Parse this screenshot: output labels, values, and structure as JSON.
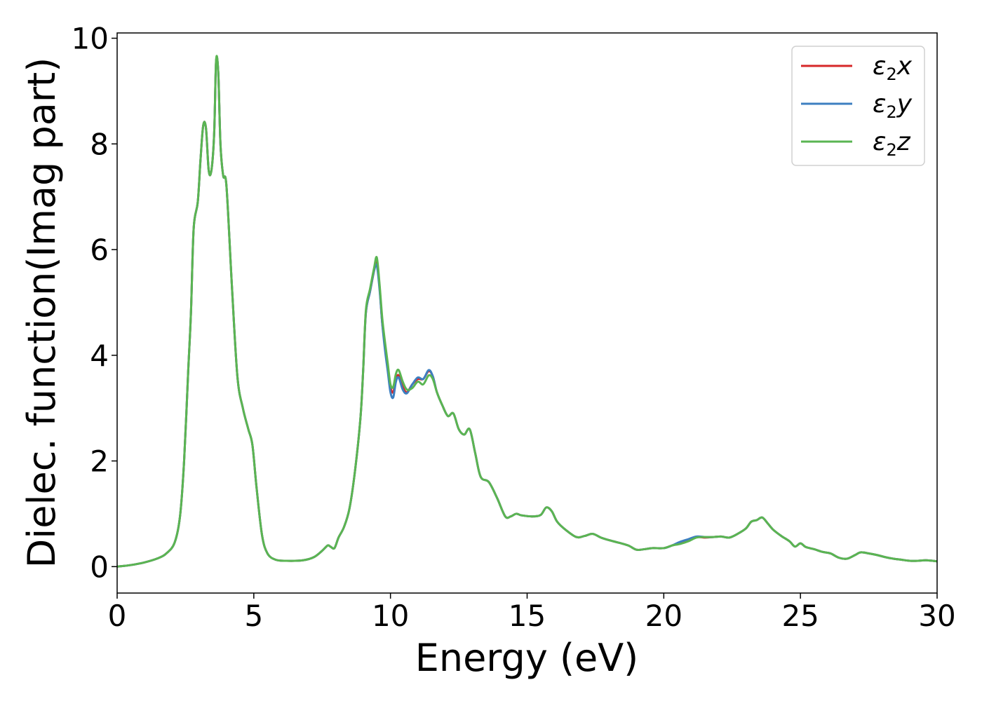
{
  "chart_data": {
    "type": "line",
    "xlabel": "Energy (eV)",
    "ylabel": "Dielec. function(Imag part)",
    "xlim": [
      0,
      30
    ],
    "ylim": [
      -0.5,
      10.1
    ],
    "xticks": [
      0,
      5,
      10,
      15,
      20,
      25,
      30
    ],
    "yticks": [
      0,
      2,
      4,
      6,
      8,
      10
    ],
    "grid": false,
    "legend_position": "top-right",
    "colors": [
      "#d62728",
      "#3d7fc1",
      "#5ab552"
    ],
    "x": [
      0,
      0.5,
      1.0,
      1.5,
      1.8,
      2.1,
      2.3,
      2.45,
      2.6,
      2.7,
      2.8,
      2.95,
      3.05,
      3.15,
      3.25,
      3.35,
      3.45,
      3.55,
      3.62,
      3.7,
      3.78,
      3.88,
      4.0,
      4.2,
      4.4,
      4.6,
      4.8,
      4.95,
      5.1,
      5.3,
      5.5,
      5.8,
      6.2,
      6.8,
      7.2,
      7.5,
      7.7,
      7.8,
      7.95,
      8.1,
      8.3,
      8.5,
      8.7,
      8.9,
      9.0,
      9.1,
      9.25,
      9.4,
      9.5,
      9.6,
      9.7,
      9.8,
      9.9,
      10.0,
      10.1,
      10.2,
      10.3,
      10.45,
      10.6,
      10.8,
      11.0,
      11.2,
      11.4,
      11.55,
      11.7,
      11.9,
      12.1,
      12.3,
      12.5,
      12.7,
      12.9,
      13.1,
      13.3,
      13.6,
      13.9,
      14.2,
      14.4,
      14.6,
      14.8,
      15.2,
      15.5,
      15.7,
      15.9,
      16.1,
      16.4,
      16.8,
      17.1,
      17.4,
      17.7,
      18.0,
      18.3,
      18.7,
      19.0,
      19.3,
      19.6,
      20.0,
      20.3,
      20.6,
      20.9,
      21.2,
      21.5,
      21.8,
      22.1,
      22.4,
      22.7,
      23.0,
      23.2,
      23.4,
      23.6,
      23.8,
      24.0,
      24.3,
      24.6,
      24.8,
      25.0,
      25.2,
      25.5,
      25.8,
      26.1,
      26.4,
      26.7,
      27.0,
      27.2,
      27.5,
      27.8,
      28.1,
      28.4,
      28.7,
      29.0,
      29.3,
      29.6,
      30.0
    ],
    "series": [
      {
        "name": "ε2x",
        "values": [
          0.0,
          0.03,
          0.08,
          0.16,
          0.25,
          0.45,
          0.95,
          2.0,
          3.7,
          4.8,
          6.4,
          6.9,
          7.7,
          8.35,
          8.3,
          7.5,
          7.5,
          8.2,
          9.55,
          9.35,
          8.0,
          7.4,
          7.2,
          5.3,
          3.6,
          3.0,
          2.6,
          2.3,
          1.5,
          0.6,
          0.25,
          0.13,
          0.11,
          0.12,
          0.18,
          0.3,
          0.4,
          0.38,
          0.35,
          0.55,
          0.75,
          1.1,
          1.8,
          2.8,
          3.7,
          4.8,
          5.2,
          5.6,
          5.8,
          5.3,
          4.6,
          4.2,
          3.8,
          3.4,
          3.3,
          3.55,
          3.62,
          3.4,
          3.3,
          3.45,
          3.55,
          3.55,
          3.7,
          3.6,
          3.3,
          3.05,
          2.85,
          2.9,
          2.6,
          2.5,
          2.6,
          2.15,
          1.7,
          1.6,
          1.3,
          0.95,
          0.95,
          1.0,
          0.97,
          0.95,
          0.98,
          1.12,
          1.05,
          0.85,
          0.7,
          0.56,
          0.58,
          0.62,
          0.55,
          0.5,
          0.46,
          0.4,
          0.32,
          0.33,
          0.35,
          0.35,
          0.4,
          0.45,
          0.5,
          0.56,
          0.55,
          0.56,
          0.57,
          0.55,
          0.62,
          0.72,
          0.85,
          0.88,
          0.93,
          0.82,
          0.7,
          0.58,
          0.48,
          0.38,
          0.44,
          0.37,
          0.33,
          0.28,
          0.25,
          0.17,
          0.15,
          0.22,
          0.27,
          0.25,
          0.22,
          0.18,
          0.15,
          0.13,
          0.11,
          0.11,
          0.12,
          0.1
        ]
      },
      {
        "name": "ε2y",
        "values": [
          0.0,
          0.03,
          0.08,
          0.16,
          0.25,
          0.45,
          0.95,
          2.0,
          3.7,
          4.8,
          6.4,
          6.9,
          7.7,
          8.35,
          8.3,
          7.5,
          7.5,
          8.2,
          9.55,
          9.35,
          8.0,
          7.4,
          7.2,
          5.3,
          3.6,
          3.0,
          2.6,
          2.3,
          1.5,
          0.6,
          0.25,
          0.13,
          0.11,
          0.12,
          0.18,
          0.3,
          0.4,
          0.38,
          0.35,
          0.55,
          0.75,
          1.1,
          1.8,
          2.8,
          3.7,
          4.8,
          5.2,
          5.6,
          5.7,
          5.25,
          4.6,
          4.1,
          3.7,
          3.3,
          3.2,
          3.5,
          3.58,
          3.35,
          3.28,
          3.45,
          3.58,
          3.55,
          3.72,
          3.6,
          3.3,
          3.05,
          2.85,
          2.9,
          2.6,
          2.5,
          2.6,
          2.15,
          1.7,
          1.6,
          1.3,
          0.95,
          0.95,
          1.0,
          0.97,
          0.95,
          0.98,
          1.12,
          1.05,
          0.85,
          0.7,
          0.56,
          0.58,
          0.62,
          0.55,
          0.5,
          0.46,
          0.4,
          0.32,
          0.33,
          0.35,
          0.35,
          0.4,
          0.47,
          0.52,
          0.57,
          0.56,
          0.56,
          0.57,
          0.55,
          0.62,
          0.72,
          0.85,
          0.88,
          0.93,
          0.82,
          0.7,
          0.58,
          0.48,
          0.38,
          0.44,
          0.37,
          0.33,
          0.28,
          0.25,
          0.17,
          0.15,
          0.22,
          0.27,
          0.25,
          0.22,
          0.18,
          0.15,
          0.13,
          0.11,
          0.11,
          0.12,
          0.1
        ]
      },
      {
        "name": "ε2z",
        "values": [
          0.0,
          0.03,
          0.08,
          0.16,
          0.25,
          0.45,
          0.95,
          2.0,
          3.7,
          4.8,
          6.4,
          6.9,
          7.7,
          8.35,
          8.3,
          7.5,
          7.5,
          8.2,
          9.58,
          9.35,
          8.0,
          7.4,
          7.2,
          5.3,
          3.6,
          3.0,
          2.6,
          2.3,
          1.5,
          0.6,
          0.25,
          0.13,
          0.11,
          0.12,
          0.18,
          0.3,
          0.4,
          0.38,
          0.35,
          0.55,
          0.75,
          1.1,
          1.8,
          2.8,
          3.7,
          4.85,
          5.25,
          5.65,
          5.85,
          5.35,
          4.7,
          4.25,
          3.85,
          3.45,
          3.4,
          3.65,
          3.72,
          3.5,
          3.35,
          3.38,
          3.5,
          3.45,
          3.62,
          3.55,
          3.3,
          3.05,
          2.85,
          2.9,
          2.6,
          2.5,
          2.6,
          2.15,
          1.7,
          1.6,
          1.3,
          0.95,
          0.95,
          1.0,
          0.97,
          0.95,
          0.98,
          1.12,
          1.05,
          0.85,
          0.7,
          0.56,
          0.58,
          0.62,
          0.55,
          0.5,
          0.46,
          0.4,
          0.32,
          0.33,
          0.35,
          0.35,
          0.4,
          0.43,
          0.48,
          0.55,
          0.56,
          0.56,
          0.57,
          0.55,
          0.62,
          0.72,
          0.85,
          0.88,
          0.93,
          0.82,
          0.7,
          0.58,
          0.48,
          0.38,
          0.44,
          0.37,
          0.33,
          0.28,
          0.25,
          0.17,
          0.15,
          0.22,
          0.27,
          0.25,
          0.22,
          0.18,
          0.15,
          0.13,
          0.11,
          0.11,
          0.12,
          0.1
        ]
      }
    ]
  }
}
